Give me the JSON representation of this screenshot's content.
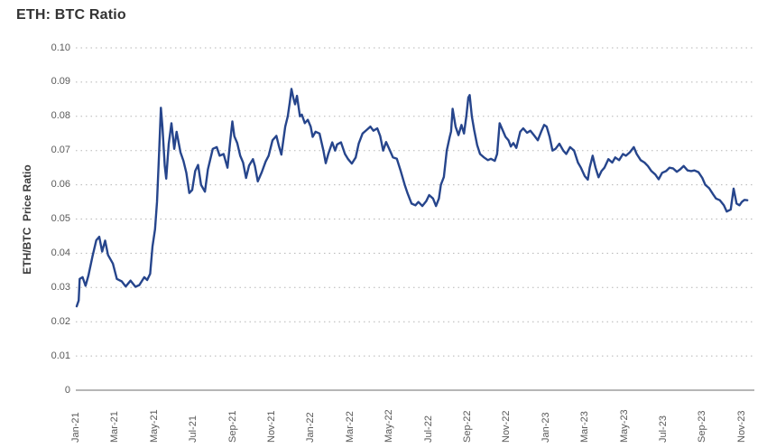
{
  "header": {
    "title": "ETH: BTC Ratio"
  },
  "colors": {
    "line": "#26458c",
    "grid": "#b5b5b5",
    "axis": "#9e9e9e",
    "tick_text": "#595959",
    "title_text": "#333333"
  },
  "chart_data": {
    "type": "line",
    "title": "ETH: BTC Ratio",
    "xlabel": "",
    "ylabel": "ETH/BTC  Price Ratio",
    "legend": "none",
    "grid": "horizontal-dotted",
    "ylim": [
      0,
      0.1
    ],
    "x_definition": "months since Jan-2021 (0 = Jan-21)",
    "x_ticks": [
      {
        "m": 0,
        "label": "Jan-21"
      },
      {
        "m": 2,
        "label": "Mar-21"
      },
      {
        "m": 4,
        "label": "May-21"
      },
      {
        "m": 6,
        "label": "Jul-21"
      },
      {
        "m": 8,
        "label": "Sep-21"
      },
      {
        "m": 10,
        "label": "Nov-21"
      },
      {
        "m": 12,
        "label": "Jan-22"
      },
      {
        "m": 14,
        "label": "Mar-22"
      },
      {
        "m": 16,
        "label": "May-22"
      },
      {
        "m": 18,
        "label": "Jul-22"
      },
      {
        "m": 20,
        "label": "Sep-22"
      },
      {
        "m": 22,
        "label": "Nov-22"
      },
      {
        "m": 24,
        "label": "Jan-23"
      },
      {
        "m": 26,
        "label": "Mar-23"
      },
      {
        "m": 28,
        "label": "May-23"
      },
      {
        "m": 30,
        "label": "Jul-23"
      },
      {
        "m": 32,
        "label": "Sep-23"
      },
      {
        "m": 34,
        "label": "Nov-23"
      }
    ],
    "y_ticks": [
      {
        "v": 0.0,
        "label": "0"
      },
      {
        "v": 0.01,
        "label": "0.01"
      },
      {
        "v": 0.02,
        "label": "0.02"
      },
      {
        "v": 0.03,
        "label": "0.03"
      },
      {
        "v": 0.04,
        "label": "0.04"
      },
      {
        "v": 0.05,
        "label": "0.05"
      },
      {
        "v": 0.06,
        "label": "0.06"
      },
      {
        "v": 0.07,
        "label": "0.07"
      },
      {
        "v": 0.08,
        "label": "0.08"
      },
      {
        "v": 0.09,
        "label": "0.09"
      },
      {
        "v": 0.1,
        "label": "0.10"
      }
    ],
    "series": [
      {
        "name": "ETH/BTC Price Ratio",
        "color": "#26458c",
        "points": [
          [
            0.0,
            0.0245
          ],
          [
            0.1,
            0.0262
          ],
          [
            0.15,
            0.0325
          ],
          [
            0.3,
            0.033
          ],
          [
            0.45,
            0.0305
          ],
          [
            0.6,
            0.0335
          ],
          [
            0.8,
            0.039
          ],
          [
            1.0,
            0.0438
          ],
          [
            1.15,
            0.0448
          ],
          [
            1.3,
            0.0405
          ],
          [
            1.45,
            0.0437
          ],
          [
            1.6,
            0.0395
          ],
          [
            1.85,
            0.037
          ],
          [
            2.05,
            0.0325
          ],
          [
            2.3,
            0.0318
          ],
          [
            2.5,
            0.0303
          ],
          [
            2.75,
            0.032
          ],
          [
            3.0,
            0.0302
          ],
          [
            3.2,
            0.0307
          ],
          [
            3.45,
            0.033
          ],
          [
            3.6,
            0.0322
          ],
          [
            3.75,
            0.034
          ],
          [
            3.87,
            0.042
          ],
          [
            4.0,
            0.047
          ],
          [
            4.1,
            0.055
          ],
          [
            4.2,
            0.068
          ],
          [
            4.3,
            0.0825
          ],
          [
            4.38,
            0.077
          ],
          [
            4.5,
            0.0655
          ],
          [
            4.57,
            0.0618
          ],
          [
            4.7,
            0.072
          ],
          [
            4.84,
            0.078
          ],
          [
            4.98,
            0.0705
          ],
          [
            5.1,
            0.0755
          ],
          [
            5.3,
            0.0695
          ],
          [
            5.45,
            0.067
          ],
          [
            5.6,
            0.0635
          ],
          [
            5.75,
            0.0576
          ],
          [
            5.9,
            0.0585
          ],
          [
            6.05,
            0.064
          ],
          [
            6.2,
            0.0658
          ],
          [
            6.35,
            0.06
          ],
          [
            6.55,
            0.058
          ],
          [
            6.7,
            0.0645
          ],
          [
            6.95,
            0.0705
          ],
          [
            7.15,
            0.071
          ],
          [
            7.3,
            0.0685
          ],
          [
            7.5,
            0.069
          ],
          [
            7.7,
            0.065
          ],
          [
            7.85,
            0.0732
          ],
          [
            7.95,
            0.0785
          ],
          [
            8.05,
            0.0742
          ],
          [
            8.2,
            0.0722
          ],
          [
            8.35,
            0.0685
          ],
          [
            8.5,
            0.0665
          ],
          [
            8.65,
            0.062
          ],
          [
            8.8,
            0.0656
          ],
          [
            9.0,
            0.0675
          ],
          [
            9.1,
            0.0655
          ],
          [
            9.25,
            0.061
          ],
          [
            9.45,
            0.0637
          ],
          [
            9.65,
            0.0668
          ],
          [
            9.8,
            0.0685
          ],
          [
            10.0,
            0.073
          ],
          [
            10.2,
            0.0743
          ],
          [
            10.32,
            0.0715
          ],
          [
            10.45,
            0.0688
          ],
          [
            10.65,
            0.077
          ],
          [
            10.78,
            0.08
          ],
          [
            10.88,
            0.084
          ],
          [
            10.97,
            0.088
          ],
          [
            11.06,
            0.0855
          ],
          [
            11.15,
            0.0835
          ],
          [
            11.25,
            0.086
          ],
          [
            11.4,
            0.08
          ],
          [
            11.5,
            0.0805
          ],
          [
            11.65,
            0.078
          ],
          [
            11.8,
            0.079
          ],
          [
            11.95,
            0.077
          ],
          [
            12.05,
            0.074
          ],
          [
            12.2,
            0.0755
          ],
          [
            12.4,
            0.075
          ],
          [
            12.6,
            0.07
          ],
          [
            12.72,
            0.0663
          ],
          [
            12.85,
            0.069
          ],
          [
            13.05,
            0.0724
          ],
          [
            13.2,
            0.07
          ],
          [
            13.3,
            0.0718
          ],
          [
            13.5,
            0.0724
          ],
          [
            13.7,
            0.069
          ],
          [
            13.85,
            0.0676
          ],
          [
            14.05,
            0.0662
          ],
          [
            14.25,
            0.068
          ],
          [
            14.4,
            0.072
          ],
          [
            14.6,
            0.075
          ],
          [
            14.8,
            0.076
          ],
          [
            15.0,
            0.077
          ],
          [
            15.15,
            0.0758
          ],
          [
            15.35,
            0.0765
          ],
          [
            15.5,
            0.0743
          ],
          [
            15.65,
            0.07
          ],
          [
            15.8,
            0.0725
          ],
          [
            16.0,
            0.07
          ],
          [
            16.15,
            0.068
          ],
          [
            16.35,
            0.0676
          ],
          [
            16.55,
            0.064
          ],
          [
            16.75,
            0.06
          ],
          [
            16.9,
            0.0575
          ],
          [
            17.1,
            0.0545
          ],
          [
            17.3,
            0.054
          ],
          [
            17.45,
            0.055
          ],
          [
            17.65,
            0.0538
          ],
          [
            17.85,
            0.0552
          ],
          [
            18.0,
            0.057
          ],
          [
            18.2,
            0.056
          ],
          [
            18.35,
            0.0538
          ],
          [
            18.5,
            0.056
          ],
          [
            18.6,
            0.06
          ],
          [
            18.75,
            0.0623
          ],
          [
            18.9,
            0.07
          ],
          [
            19.05,
            0.074
          ],
          [
            19.12,
            0.0756
          ],
          [
            19.2,
            0.0822
          ],
          [
            19.35,
            0.077
          ],
          [
            19.5,
            0.0745
          ],
          [
            19.65,
            0.0775
          ],
          [
            19.78,
            0.075
          ],
          [
            19.9,
            0.08
          ],
          [
            20.0,
            0.0855
          ],
          [
            20.07,
            0.0862
          ],
          [
            20.18,
            0.08
          ],
          [
            20.3,
            0.076
          ],
          [
            20.45,
            0.0716
          ],
          [
            20.6,
            0.069
          ],
          [
            20.8,
            0.068
          ],
          [
            21.0,
            0.0672
          ],
          [
            21.15,
            0.0676
          ],
          [
            21.35,
            0.067
          ],
          [
            21.47,
            0.069
          ],
          [
            21.6,
            0.078
          ],
          [
            21.75,
            0.076
          ],
          [
            21.9,
            0.074
          ],
          [
            22.05,
            0.073
          ],
          [
            22.17,
            0.0712
          ],
          [
            22.3,
            0.0722
          ],
          [
            22.45,
            0.0708
          ],
          [
            22.65,
            0.0755
          ],
          [
            22.8,
            0.0765
          ],
          [
            23.0,
            0.0752
          ],
          [
            23.17,
            0.0758
          ],
          [
            23.35,
            0.0745
          ],
          [
            23.55,
            0.073
          ],
          [
            23.72,
            0.0755
          ],
          [
            23.87,
            0.0775
          ],
          [
            24.0,
            0.077
          ],
          [
            24.15,
            0.074
          ],
          [
            24.3,
            0.07
          ],
          [
            24.45,
            0.0705
          ],
          [
            24.65,
            0.072
          ],
          [
            24.85,
            0.07
          ],
          [
            25.0,
            0.069
          ],
          [
            25.2,
            0.071
          ],
          [
            25.4,
            0.07
          ],
          [
            25.6,
            0.0665
          ],
          [
            25.75,
            0.065
          ],
          [
            25.95,
            0.0625
          ],
          [
            26.1,
            0.0615
          ],
          [
            26.2,
            0.065
          ],
          [
            26.35,
            0.0685
          ],
          [
            26.5,
            0.065
          ],
          [
            26.65,
            0.0622
          ],
          [
            26.8,
            0.064
          ],
          [
            26.95,
            0.065
          ],
          [
            27.15,
            0.0675
          ],
          [
            27.35,
            0.0665
          ],
          [
            27.5,
            0.068
          ],
          [
            27.7,
            0.0672
          ],
          [
            27.9,
            0.069
          ],
          [
            28.05,
            0.0685
          ],
          [
            28.25,
            0.0695
          ],
          [
            28.45,
            0.071
          ],
          [
            28.6,
            0.069
          ],
          [
            28.8,
            0.0672
          ],
          [
            29.0,
            0.0665
          ],
          [
            29.17,
            0.0655
          ],
          [
            29.35,
            0.064
          ],
          [
            29.55,
            0.063
          ],
          [
            29.72,
            0.0616
          ],
          [
            29.9,
            0.0635
          ],
          [
            30.1,
            0.064
          ],
          [
            30.27,
            0.065
          ],
          [
            30.45,
            0.0648
          ],
          [
            30.65,
            0.0638
          ],
          [
            30.82,
            0.0645
          ],
          [
            31.0,
            0.0655
          ],
          [
            31.2,
            0.0642
          ],
          [
            31.38,
            0.064
          ],
          [
            31.55,
            0.0642
          ],
          [
            31.75,
            0.0637
          ],
          [
            31.95,
            0.062
          ],
          [
            32.1,
            0.06
          ],
          [
            32.3,
            0.059
          ],
          [
            32.5,
            0.0572
          ],
          [
            32.65,
            0.056
          ],
          [
            32.85,
            0.0555
          ],
          [
            33.05,
            0.054
          ],
          [
            33.2,
            0.0522
          ],
          [
            33.4,
            0.0528
          ],
          [
            33.55,
            0.0589
          ],
          [
            33.7,
            0.0545
          ],
          [
            33.85,
            0.054
          ],
          [
            33.97,
            0.055
          ],
          [
            34.1,
            0.0556
          ],
          [
            34.25,
            0.0555
          ]
        ]
      }
    ]
  }
}
